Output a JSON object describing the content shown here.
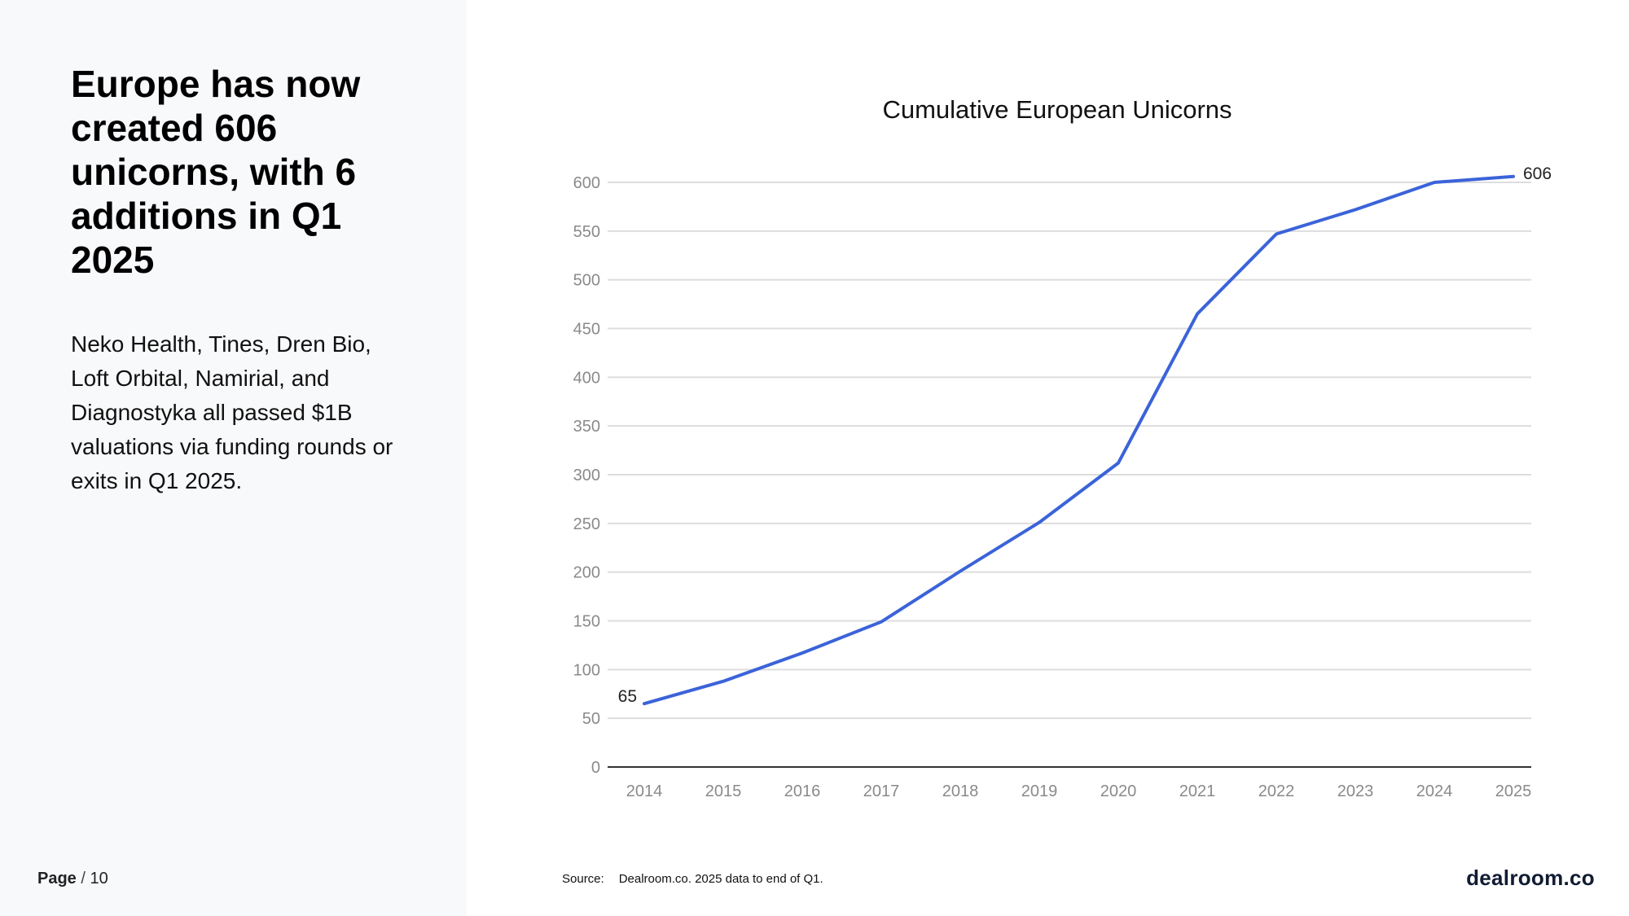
{
  "headline": "Europe has now created 606 unicorns, with 6 additions in Q1 2025",
  "body": "Neko Health, Tines, Dren Bio, Loft Orbital, Namirial, and Diagnostyka all passed $1B valuations via funding rounds or exits in Q1 2025.",
  "page": {
    "label": "Page",
    "separator": "/",
    "number": "10"
  },
  "source": {
    "label": "Source:",
    "text": "Dealroom.co. 2025 data to end of Q1."
  },
  "brand": "dealroom.co",
  "colors": {
    "line": "#3b63d9",
    "grid": "#dddddd",
    "axis": "#333333",
    "panel": "#f8f9fb"
  },
  "chart_data": {
    "type": "line",
    "title": "Cumulative European Unicorns",
    "xlabel": "",
    "ylabel": "",
    "x": [
      "2014",
      "2015",
      "2016",
      "2017",
      "2018",
      "2019",
      "2020",
      "2021",
      "2022",
      "2023",
      "2024",
      "2025"
    ],
    "series": [
      {
        "values": [
          65,
          88,
          117,
          149,
          201,
          251,
          312,
          465,
          547,
          572,
          600,
          606
        ]
      }
    ],
    "data_labels": [
      {
        "index": 0,
        "text": "65"
      },
      {
        "index": 11,
        "text": "606"
      }
    ],
    "ylim": [
      0,
      600
    ],
    "yticks": [
      0,
      50,
      100,
      150,
      200,
      250,
      300,
      350,
      400,
      450,
      500,
      550,
      600
    ],
    "grid": true,
    "legend": "none"
  }
}
